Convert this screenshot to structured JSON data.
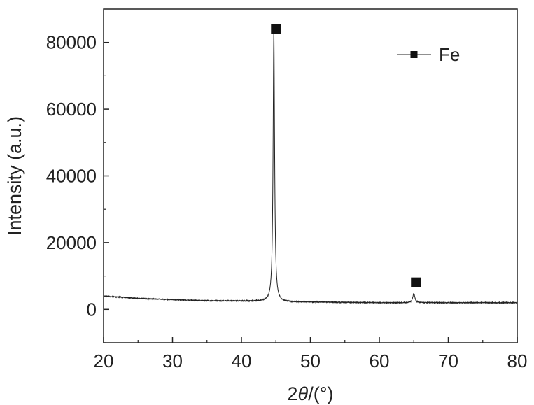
{
  "chart_data": {
    "type": "line",
    "xlabel": "2θ/(°)",
    "xlabel_parts": {
      "prefix": "2",
      "italic": "θ",
      "suffix": "/(°)"
    },
    "ylabel": "Intensity (a.u.)",
    "xlim": [
      20,
      80
    ],
    "ylim": [
      -10000,
      90000
    ],
    "xticks": [
      20,
      30,
      40,
      50,
      60,
      70,
      80
    ],
    "yticks": [
      0,
      20000,
      40000,
      60000,
      80000
    ],
    "grid": false,
    "legend_position": "top-right",
    "series": [
      {
        "name": "Fe",
        "color": "#222222",
        "baseline": [
          [
            20,
            4000
          ],
          [
            25,
            3300
          ],
          [
            30,
            2900
          ],
          [
            35,
            2600
          ],
          [
            40,
            2500
          ],
          [
            43,
            2400
          ],
          [
            45,
            2200
          ],
          [
            50,
            2200
          ],
          [
            55,
            2100
          ],
          [
            60,
            2000
          ],
          [
            65,
            2000
          ],
          [
            70,
            2000
          ],
          [
            75,
            2000
          ],
          [
            80,
            2000
          ]
        ],
        "peaks": [
          {
            "center": 44.7,
            "height": 81500,
            "width": 0.13
          },
          {
            "center": 65.0,
            "height": 2800,
            "width": 0.18
          }
        ]
      }
    ],
    "markers": [
      {
        "x": 45.0,
        "y": 84000,
        "label": "Fe"
      },
      {
        "x": 65.3,
        "y": 8100,
        "label": "Fe"
      }
    ]
  }
}
